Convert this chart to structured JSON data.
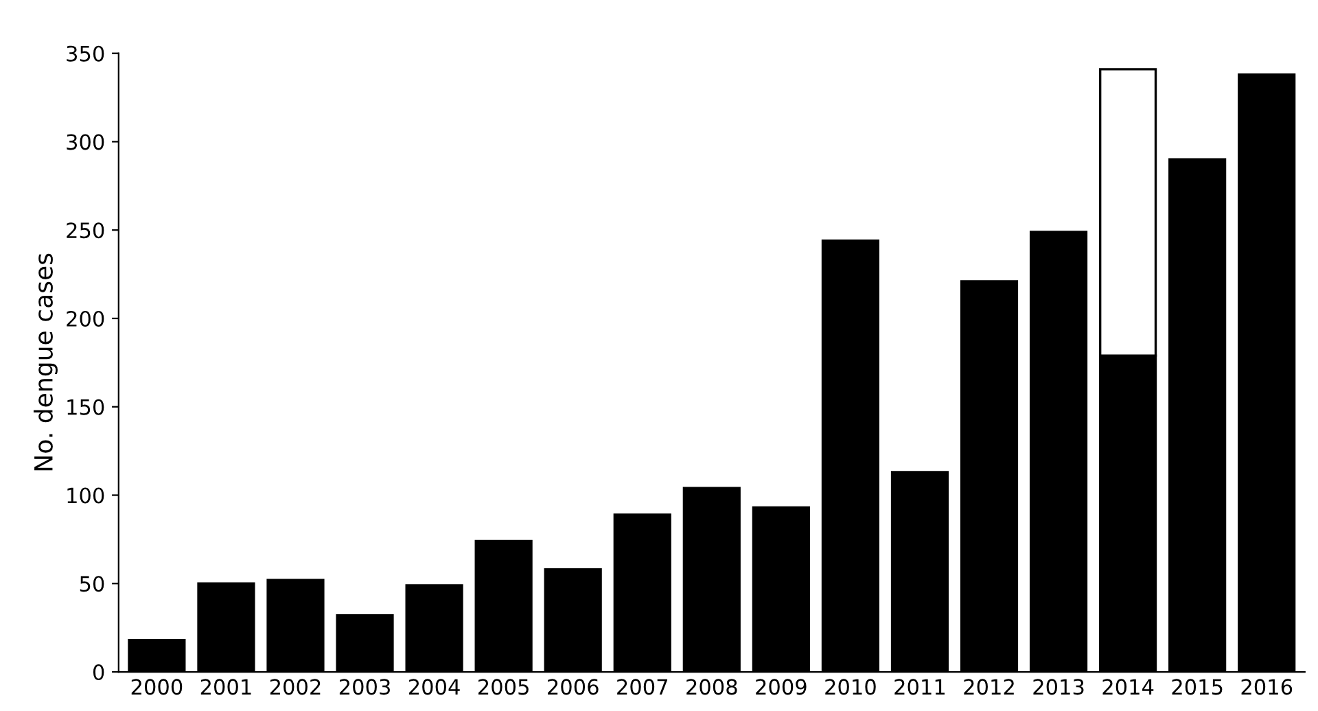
{
  "chart_data": {
    "type": "bar",
    "ylabel": "No. dengue cases",
    "stacked": true,
    "categories": [
      "2000",
      "2001",
      "2002",
      "2003",
      "2004",
      "2005",
      "2006",
      "2007",
      "2008",
      "2009",
      "2010",
      "2011",
      "2012",
      "2013",
      "2014",
      "2015",
      "2016"
    ],
    "series": [
      {
        "color": "#000000",
        "values": [
          18,
          50,
          52,
          32,
          49,
          74,
          58,
          89,
          104,
          93,
          244,
          113,
          221,
          249,
          179,
          290,
          338
        ]
      },
      {
        "color": "#ffffff",
        "values": [
          null,
          null,
          null,
          null,
          null,
          null,
          null,
          null,
          null,
          null,
          null,
          null,
          null,
          null,
          162,
          null,
          null
        ]
      }
    ],
    "ylim": [
      0,
      350
    ],
    "yticks": [
      0,
      50,
      100,
      150,
      200,
      250,
      300,
      350
    ],
    "grid": false
  }
}
